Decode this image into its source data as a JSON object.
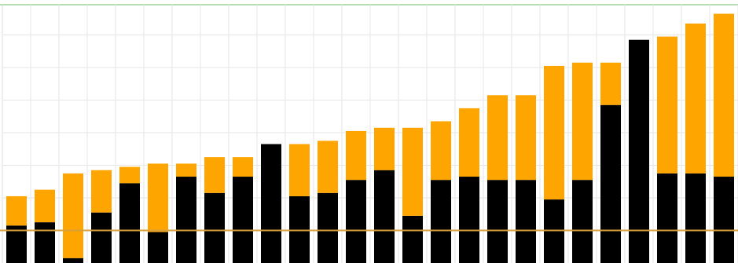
{
  "chart_data": {
    "type": "stacked_bar",
    "categories": [
      null,
      null,
      null,
      null,
      null,
      null,
      null,
      null,
      null,
      null,
      null,
      null,
      null,
      null,
      null,
      null,
      null,
      null,
      null,
      null,
      null,
      null,
      null,
      null,
      null,
      null
    ],
    "series": [
      {
        "color": "#000000",
        "values": [
          1.15,
          1.25,
          0.15,
          1.55,
          2.45,
          0.95,
          2.65,
          2.15,
          2.65,
          3.65,
          2.05,
          2.15,
          2.55,
          2.85,
          1.45,
          2.55,
          2.65,
          2.55,
          2.55,
          1.95,
          2.55,
          4.85,
          6.85,
          2.75,
          2.75,
          2.65
        ]
      },
      {
        "color": "#ffa500",
        "values": [
          0.9,
          1.0,
          2.6,
          1.3,
          0.5,
          2.1,
          0.4,
          1.1,
          0.6,
          0,
          1.6,
          1.6,
          1.5,
          1.3,
          2.7,
          1.8,
          2.1,
          2.6,
          2.6,
          4.1,
          3.6,
          1.3,
          0,
          4.2,
          4.6,
          5.0
        ]
      }
    ],
    "ylim": [
      0,
      8
    ],
    "yticks": [
      1,
      2,
      3,
      4,
      5,
      6,
      7
    ],
    "grid": true,
    "reference_line": {
      "value": 1,
      "color": "#d9a03a"
    }
  }
}
